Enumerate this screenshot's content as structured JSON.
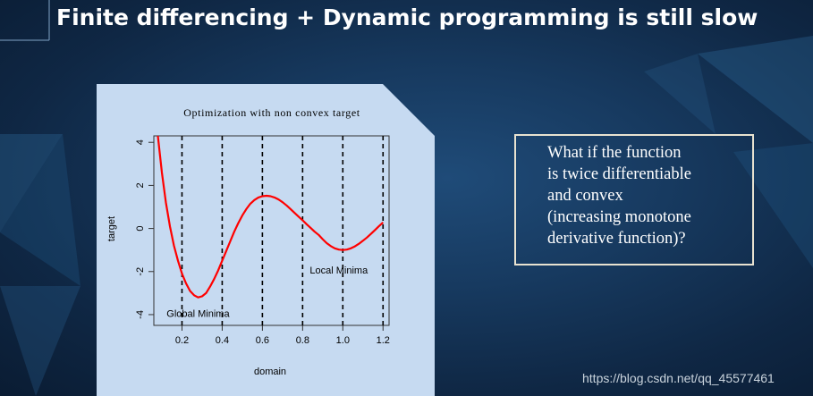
{
  "slide": {
    "title": "Finite differencing + Dynamic programming is still slow",
    "callout_lines": [
      "What if the function",
      "is twice differentiable",
      "and convex",
      "(increasing monotone",
      "derivative function)?"
    ],
    "watermark": "https://blog.csdn.net/qq_45577461"
  },
  "chart_data": {
    "type": "line",
    "title": "Optimization with non convex target",
    "xlabel": "domain",
    "ylabel": "target",
    "xlim": [
      0.06,
      1.23
    ],
    "ylim": [
      -4.5,
      4.3
    ],
    "x_ticks": [
      0.2,
      0.4,
      0.6,
      0.8,
      1.0,
      1.2
    ],
    "x_tick_labels": [
      "0.2",
      "0.4",
      "0.6",
      "0.8",
      "1.0",
      "1.2"
    ],
    "y_ticks": [
      -4,
      -2,
      0,
      2,
      4
    ],
    "y_tick_labels": [
      "-4",
      "-2",
      "0",
      "2",
      "4"
    ],
    "vlines": [
      0.2,
      0.4,
      0.6,
      0.8,
      1.0,
      1.2
    ],
    "series": [
      {
        "color": "#ff0000",
        "x": [
          0.08,
          0.1,
          0.12,
          0.14,
          0.16,
          0.18,
          0.2,
          0.22,
          0.24,
          0.26,
          0.28,
          0.3,
          0.32,
          0.34,
          0.36,
          0.38,
          0.4,
          0.42,
          0.44,
          0.46,
          0.48,
          0.5,
          0.52,
          0.54,
          0.56,
          0.58,
          0.6,
          0.62,
          0.64,
          0.66,
          0.68,
          0.7,
          0.72,
          0.74,
          0.76,
          0.78,
          0.8,
          0.82,
          0.84,
          0.86,
          0.88,
          0.9,
          0.92,
          0.94,
          0.96,
          0.98,
          1.0,
          1.02,
          1.04,
          1.06,
          1.08,
          1.1,
          1.12,
          1.14,
          1.16,
          1.18,
          1.2
        ],
        "y": [
          4.3,
          2.6,
          1.2,
          0.1,
          -0.8,
          -1.5,
          -2.1,
          -2.55,
          -2.9,
          -3.1,
          -3.2,
          -3.15,
          -3.0,
          -2.7,
          -2.35,
          -1.95,
          -1.5,
          -1.05,
          -0.6,
          -0.15,
          0.25,
          0.6,
          0.9,
          1.15,
          1.32,
          1.44,
          1.5,
          1.52,
          1.5,
          1.44,
          1.35,
          1.22,
          1.07,
          0.9,
          0.72,
          0.55,
          0.38,
          0.2,
          0.03,
          -0.15,
          -0.3,
          -0.5,
          -0.68,
          -0.82,
          -0.92,
          -0.98,
          -1.0,
          -0.98,
          -0.92,
          -0.83,
          -0.71,
          -0.57,
          -0.42,
          -0.25,
          -0.07,
          0.11,
          0.28
        ]
      }
    ],
    "annotations": [
      {
        "text": "Global Minima",
        "x": 0.28,
        "y": -4.1
      },
      {
        "text": "Local Minima",
        "x": 0.98,
        "y": -2.1
      }
    ]
  }
}
